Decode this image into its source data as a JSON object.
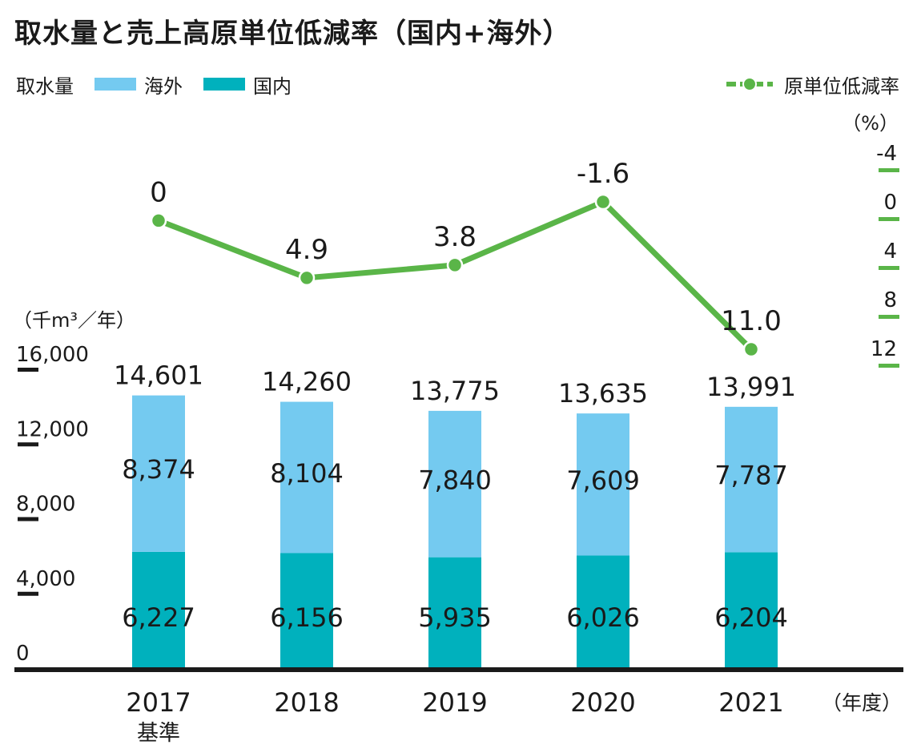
{
  "title": "取水量と売上高原単位低減率（国内+海外）",
  "legend": {
    "bar_group_label": "取水量",
    "overseas_label": "海外",
    "domestic_label": "国内",
    "line_label": "原単位低減率"
  },
  "colors": {
    "overseas": "#74caf0",
    "domestic": "#00b1bd",
    "line": "#5ab548",
    "axis": "#1a1a1a"
  },
  "chart_data": {
    "type": "bar",
    "categories": [
      "2017",
      "2018",
      "2019",
      "2020",
      "2021"
    ],
    "category_sublabels": [
      "基準",
      "",
      "",
      "",
      ""
    ],
    "xlabel": "（年度）",
    "ylabel": "（千m³／年）",
    "ylim": [
      0,
      16000
    ],
    "y_ticks": [
      "0",
      "4,000",
      "8,000",
      "12,000",
      "16,000"
    ],
    "y_tick_values": [
      0,
      4000,
      8000,
      12000,
      16000
    ],
    "series": [
      {
        "name": "国内",
        "values": [
          6227,
          6156,
          5935,
          6026,
          6204
        ],
        "labels": [
          "6,227",
          "6,156",
          "5,935",
          "6,026",
          "6,204"
        ]
      },
      {
        "name": "海外",
        "values": [
          8374,
          8104,
          7840,
          7609,
          7787
        ],
        "labels": [
          "8,374",
          "8,104",
          "7,840",
          "7,609",
          "7,787"
        ]
      }
    ],
    "totals": [
      14601,
      14260,
      13775,
      13635,
      13991
    ],
    "total_labels": [
      "14,601",
      "14,260",
      "13,775",
      "13,635",
      "13,991"
    ],
    "line_series": {
      "name": "原単位低減率",
      "values": [
        0,
        4.9,
        3.8,
        -1.6,
        11.0
      ],
      "labels": [
        "0",
        "4.9",
        "3.8",
        "-1.6",
        "11.0"
      ],
      "axis_label": "（%）",
      "ylim": [
        -4,
        12
      ],
      "inverted": true,
      "y_ticks": [
        "-4",
        "0",
        "4",
        "8",
        "12"
      ],
      "y_tick_values": [
        -4,
        0,
        4,
        8,
        12
      ]
    },
    "legend_position": "top"
  }
}
